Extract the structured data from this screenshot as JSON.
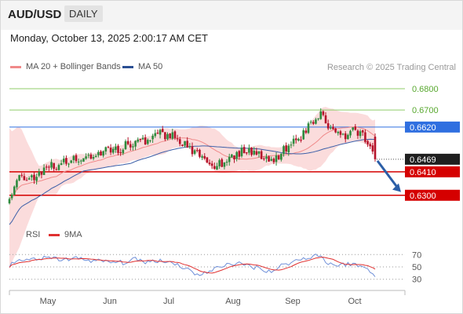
{
  "header": {
    "symbol": "AUD/USD",
    "period": "DAILY",
    "datetime": "Monday, October 13, 2025 2:00:17 AM CET"
  },
  "legend": {
    "ma20_bb": "MA 20 + Bollinger Bands",
    "ma50": "MA 50",
    "credit": "Research © 2025 Trading Central",
    "rsi": "RSI",
    "rsi_ma": "9MA"
  },
  "colors": {
    "bull": "#2e8b3e",
    "bear": "#b5132a",
    "bb_fill": "#fbdcdc",
    "ma20": "#f08a8a",
    "ma50": "#3c5fa8",
    "resistance_green": "#8fcc6a",
    "pivot_blue": "#2f6fe0",
    "support_red": "#d50000",
    "arrow": "#2b5ea7",
    "rsi_line": "#6f8fd8",
    "rsi_ma": "#e03030"
  },
  "chart_data": {
    "type": "candlestick",
    "price_range": [
      0.6185,
      0.6855
    ],
    "x_labels": [
      "May",
      "Jun",
      "Jul",
      "Aug",
      "Sep",
      "Oct"
    ],
    "levels": [
      {
        "label": "0.6800",
        "value": 0.68,
        "kind": "resistance"
      },
      {
        "label": "0.6700",
        "value": 0.67,
        "kind": "resistance"
      },
      {
        "label": "0.6620",
        "value": 0.662,
        "kind": "pivot"
      },
      {
        "label": "0.6469",
        "value": 0.6469,
        "kind": "last"
      },
      {
        "label": "0.6410",
        "value": 0.641,
        "kind": "support"
      },
      {
        "label": "0.6300",
        "value": 0.63,
        "kind": "support"
      }
    ],
    "forecast_arrow": {
      "from": 0.6469,
      "to": 0.6308
    },
    "close_path": [
      [
        0,
        0.6305
      ],
      [
        4,
        0.638
      ],
      [
        8,
        0.6385
      ],
      [
        12,
        0.64
      ],
      [
        16,
        0.643
      ],
      [
        22,
        0.645
      ],
      [
        28,
        0.647
      ],
      [
        34,
        0.649
      ],
      [
        40,
        0.651
      ],
      [
        46,
        0.6525
      ],
      [
        51,
        0.6555
      ],
      [
        56,
        0.655
      ],
      [
        61,
        0.659
      ],
      [
        67,
        0.6575
      ],
      [
        71,
        0.654
      ],
      [
        75,
        0.65
      ],
      [
        78,
        0.647
      ],
      [
        82,
        0.644
      ],
      [
        86,
        0.6455
      ],
      [
        90,
        0.648
      ],
      [
        94,
        0.651
      ],
      [
        99,
        0.65
      ],
      [
        103,
        0.6485
      ],
      [
        106,
        0.646
      ],
      [
        110,
        0.65
      ],
      [
        114,
        0.655
      ],
      [
        118,
        0.658
      ],
      [
        121,
        0.662
      ],
      [
        124,
        0.666
      ],
      [
        126,
        0.669
      ],
      [
        128,
        0.664
      ],
      [
        131,
        0.66
      ],
      [
        134,
        0.657
      ],
      [
        137,
        0.659
      ],
      [
        140,
        0.66
      ],
      [
        143,
        0.658
      ],
      [
        146,
        0.655
      ],
      [
        148,
        0.6469
      ]
    ],
    "rsi": {
      "levels": [
        70,
        50,
        30
      ],
      "range": [
        22,
        78
      ],
      "path": [
        [
          0,
          52
        ],
        [
          5,
          60
        ],
        [
          10,
          63
        ],
        [
          16,
          64
        ],
        [
          22,
          62
        ],
        [
          28,
          64
        ],
        [
          34,
          60
        ],
        [
          40,
          58
        ],
        [
          46,
          57
        ],
        [
          51,
          62
        ],
        [
          56,
          58
        ],
        [
          61,
          61
        ],
        [
          67,
          56
        ],
        [
          71,
          48
        ],
        [
          75,
          40
        ],
        [
          78,
          38
        ],
        [
          82,
          44
        ],
        [
          86,
          52
        ],
        [
          90,
          56
        ],
        [
          94,
          54
        ],
        [
          99,
          50
        ],
        [
          103,
          46
        ],
        [
          106,
          42
        ],
        [
          110,
          52
        ],
        [
          114,
          58
        ],
        [
          118,
          62
        ],
        [
          121,
          66
        ],
        [
          124,
          69
        ],
        [
          126,
          68
        ],
        [
          128,
          58
        ],
        [
          131,
          54
        ],
        [
          134,
          52
        ],
        [
          137,
          56
        ],
        [
          140,
          53
        ],
        [
          143,
          50
        ],
        [
          146,
          44
        ],
        [
          148,
          34
        ]
      ]
    }
  }
}
